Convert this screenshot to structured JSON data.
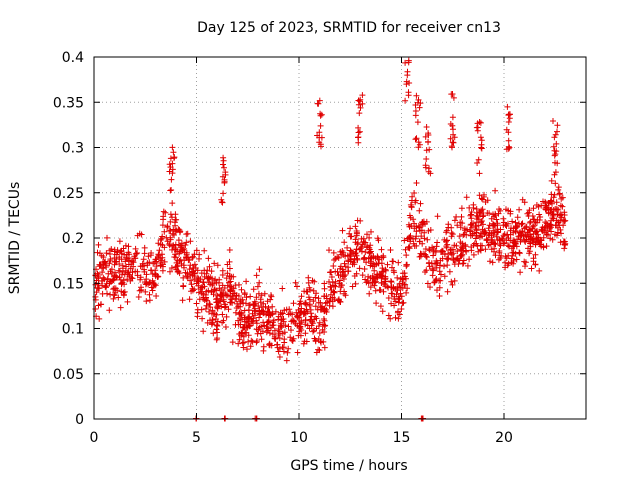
{
  "chart_data": {
    "type": "scatter",
    "title": "Day 125 of 2023, SRMTID for receiver cn13",
    "xlabel": "GPS time / hours",
    "ylabel": "SRMTID / TECUs",
    "xlim": [
      0,
      24
    ],
    "ylim": [
      0,
      0.4
    ],
    "xticks": [
      0,
      5,
      10,
      15,
      20
    ],
    "xtick_labels": [
      "0",
      "5",
      "10",
      "15",
      "20"
    ],
    "yticks": [
      0,
      0.05,
      0.1,
      0.15,
      0.2,
      0.25,
      0.3,
      0.35,
      0.4
    ],
    "ytick_labels": [
      "0",
      "0.05",
      "0.1",
      "0.15",
      "0.2",
      "0.25",
      "0.3",
      "0.35",
      "0.4"
    ],
    "grid": true,
    "marker": "+",
    "color": "#e00000",
    "trend": {
      "x": [
        0,
        1,
        2,
        3,
        3.5,
        4,
        4.5,
        5,
        5.5,
        6,
        6.5,
        7,
        7.5,
        8,
        8.5,
        9,
        9.5,
        10,
        10.5,
        11,
        11.5,
        12,
        12.5,
        13,
        13.5,
        14,
        14.5,
        15,
        15.5,
        16,
        16.5,
        17,
        17.5,
        18,
        18.5,
        19,
        19.5,
        20,
        20.5,
        21,
        21.5,
        22,
        22.5,
        23
      ],
      "y": [
        0.15,
        0.16,
        0.17,
        0.16,
        0.2,
        0.19,
        0.17,
        0.15,
        0.14,
        0.13,
        0.14,
        0.12,
        0.11,
        0.12,
        0.11,
        0.1,
        0.1,
        0.11,
        0.12,
        0.1,
        0.14,
        0.16,
        0.18,
        0.19,
        0.17,
        0.16,
        0.15,
        0.13,
        0.22,
        0.2,
        0.17,
        0.18,
        0.19,
        0.2,
        0.21,
        0.22,
        0.21,
        0.2,
        0.2,
        0.21,
        0.2,
        0.22,
        0.23,
        0.21
      ]
    },
    "highlight_clusters": [
      {
        "x": 3.8,
        "y": 0.28
      },
      {
        "x": 6.3,
        "y": 0.26
      },
      {
        "x": 11.0,
        "y": 0.33
      },
      {
        "x": 13.0,
        "y": 0.33
      },
      {
        "x": 15.3,
        "y": 0.38
      },
      {
        "x": 15.8,
        "y": 0.33
      },
      {
        "x": 16.3,
        "y": 0.3
      },
      {
        "x": 17.5,
        "y": 0.33
      },
      {
        "x": 18.8,
        "y": 0.3
      },
      {
        "x": 20.2,
        "y": 0.32
      },
      {
        "x": 22.5,
        "y": 0.3
      }
    ],
    "zero_markers": [
      5.0,
      6.4,
      7.9,
      16.0
    ],
    "point_count": 1800
  }
}
